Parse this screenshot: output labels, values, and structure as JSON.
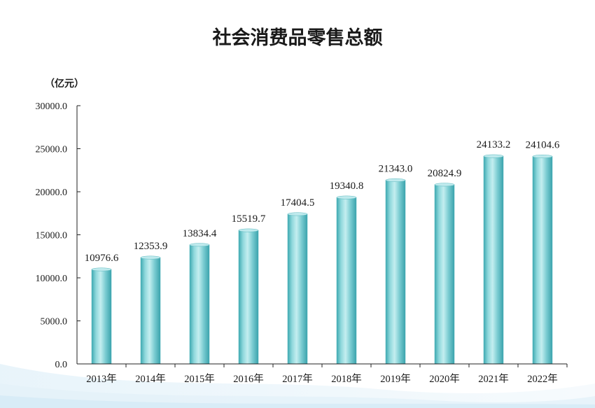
{
  "chart_data": {
    "type": "bar",
    "title": "社会消费品零售总额",
    "unit_label": "（亿元）",
    "ylim": [
      0,
      30000
    ],
    "y_ticks": [
      "0.0",
      "5000.0",
      "10000.0",
      "15000.0",
      "20000.0",
      "25000.0",
      "30000.0"
    ],
    "categories": [
      "2013年",
      "2014年",
      "2015年",
      "2016年",
      "2017年",
      "2018年",
      "2019年",
      "2020年",
      "2021年",
      "2022年"
    ],
    "values": [
      10976.6,
      12353.9,
      13834.4,
      15519.7,
      17404.5,
      19340.8,
      21343.0,
      20824.9,
      24133.2,
      24104.6
    ],
    "value_labels": [
      "10976.6",
      "12353.9",
      "13834.4",
      "15519.7",
      "17404.5",
      "19340.8",
      "21343.0",
      "20824.9",
      "24133.2",
      "24104.6"
    ],
    "grid": false,
    "legend": "none",
    "bar_color": "#6cc6cc"
  }
}
